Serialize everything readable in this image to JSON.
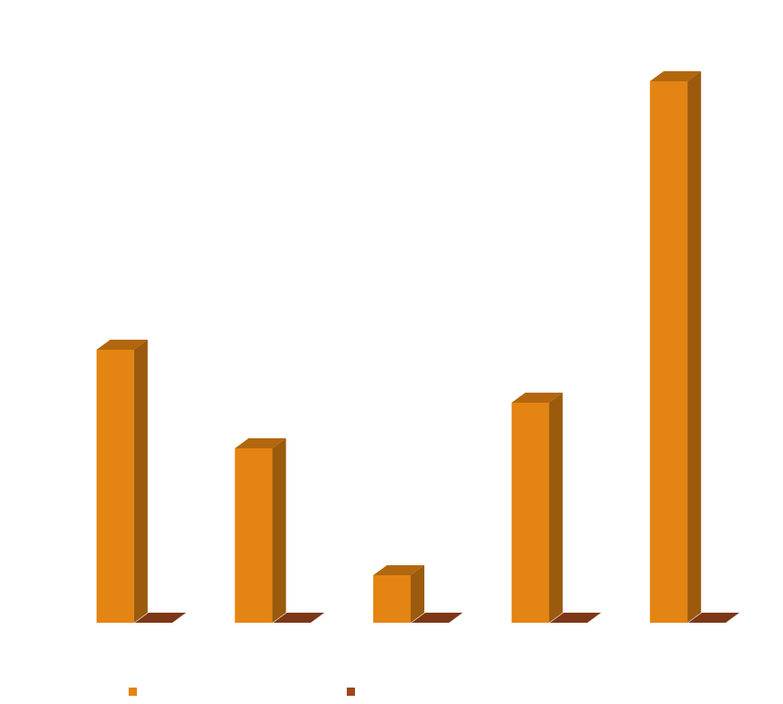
{
  "chart_data": {
    "type": "bar3d",
    "categories": [
      null,
      null,
      null,
      null,
      null
    ],
    "series": [
      {
        "color": "#e48412",
        "values": [
          299,
          191,
          52,
          241,
          593
        ]
      },
      {
        "color": "#a0461c",
        "values": [
          0,
          0,
          0,
          0,
          0
        ]
      }
    ],
    "ylim": [
      0,
      644
    ]
  }
}
